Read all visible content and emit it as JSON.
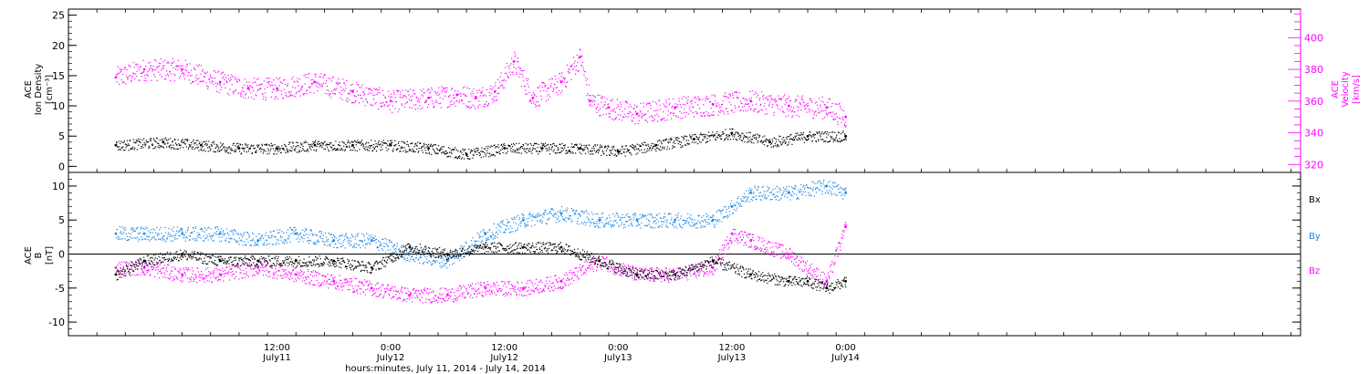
{
  "xaxis": {
    "title": "hours:minutes, July 11, 2014 - July 14, 2014",
    "range_hours": [
      -22,
      108
    ],
    "ticks": [
      {
        "h": 0,
        "time": "12:00",
        "date": "July11"
      },
      {
        "h": 12,
        "time": "0:00",
        "date": "July12"
      },
      {
        "h": 24,
        "time": "12:00",
        "date": "July12"
      },
      {
        "h": 36,
        "time": "0:00",
        "date": "July13"
      },
      {
        "h": 48,
        "time": "12:00",
        "date": "July13"
      },
      {
        "h": 60,
        "time": "0:00",
        "date": "July14"
      }
    ]
  },
  "top_panel": {
    "left_label": [
      "ACE",
      "Ion Density",
      "[cm⁻³]"
    ],
    "right_label": [
      "ACE",
      "Velocity",
      "[km/s]"
    ],
    "left_ticks": [
      "0",
      "5",
      "10",
      "15",
      "20",
      "25"
    ],
    "right_ticks": [
      "320",
      "340",
      "360",
      "380",
      "400"
    ],
    "colors": {
      "density": "#000000",
      "velocity": "#ff00ff"
    }
  },
  "bottom_panel": {
    "label": [
      "ACE",
      "B",
      "[nT]"
    ],
    "ticks": [
      "-10",
      "-5",
      "0",
      "5",
      "10"
    ],
    "legend": [
      {
        "text": "Bx",
        "color": "#000000"
      },
      {
        "text": "By",
        "color": "#1e88e5"
      },
      {
        "text": "Bz",
        "color": "#ff00ff"
      }
    ]
  },
  "chart_data": [
    {
      "type": "scatter",
      "title": "",
      "xlabel": "hours:minutes, July 11, 2014 - July 14, 2014",
      "ylabel": "ACE Ion Density [cm⁻³]",
      "y2label": "ACE Velocity [km/s]",
      "ylim": [
        -1,
        26
      ],
      "y2lim": [
        315,
        418
      ],
      "x_unit": "hours from July 11 12:00",
      "series": [
        {
          "name": "",
          "axis": "left",
          "color": "#000000",
          "x": [
            -17,
            -12,
            -8,
            -4,
            0,
            4,
            8,
            12,
            16,
            20,
            24,
            28,
            32,
            36,
            40,
            44,
            48,
            52,
            56,
            60
          ],
          "y": [
            3.5,
            4,
            3.5,
            3,
            3,
            3.5,
            3.5,
            3.5,
            3,
            2,
            3,
            3,
            3,
            2.5,
            3.5,
            4.5,
            5.5,
            4,
            5,
            5
          ]
        },
        {
          "name": "",
          "axis": "right",
          "color": "#ff00ff",
          "x": [
            -17,
            -14,
            -10,
            -6,
            -3,
            0,
            4,
            8,
            12,
            16,
            19,
            21,
            23,
            25,
            27,
            30,
            32,
            33,
            35,
            38,
            42,
            46,
            50,
            54,
            58,
            60
          ],
          "y": [
            375,
            380,
            380,
            372,
            368,
            368,
            372,
            366,
            360,
            362,
            364,
            362,
            366,
            385,
            362,
            372,
            388,
            360,
            356,
            352,
            356,
            358,
            360,
            357,
            356,
            350
          ]
        }
      ]
    },
    {
      "type": "scatter",
      "title": "",
      "xlabel": "hours:minutes, July 11, 2014 - July 14, 2014",
      "ylabel": "ACE B [nT]",
      "ylim": [
        -12,
        12
      ],
      "x_unit": "hours from July 11 12:00",
      "series": [
        {
          "name": "Bx",
          "color": "#000000",
          "x": [
            -17,
            -14,
            -10,
            -6,
            -2,
            2,
            6,
            10,
            14,
            18,
            22,
            26,
            30,
            34,
            38,
            42,
            46,
            50,
            54,
            56,
            58,
            60
          ],
          "y": [
            -3,
            -1,
            0,
            -1,
            -1,
            -1,
            -1,
            -2,
            1,
            0,
            1,
            1,
            1,
            -1,
            -3,
            -3,
            -1,
            -3,
            -4,
            -4,
            -5,
            -4
          ]
        },
        {
          "name": "By",
          "color": "#1e88e5",
          "x": [
            -17,
            -14,
            -10,
            -6,
            -2,
            2,
            6,
            10,
            14,
            18,
            22,
            26,
            30,
            34,
            38,
            42,
            46,
            48,
            50,
            54,
            58,
            60
          ],
          "y": [
            3,
            3,
            3,
            3,
            2,
            3,
            2,
            2,
            0,
            -1,
            3,
            5,
            6,
            5,
            5,
            5,
            5,
            7,
            9,
            9,
            10,
            9
          ]
        },
        {
          "name": "Bz",
          "color": "#ff00ff",
          "x": [
            -17,
            -14,
            -10,
            -6,
            -2,
            2,
            6,
            10,
            14,
            18,
            22,
            26,
            30,
            34,
            38,
            42,
            46,
            48,
            50,
            54,
            58,
            60
          ],
          "y": [
            -2,
            -2,
            -3,
            -3,
            -2,
            -3,
            -4,
            -5,
            -6,
            -6,
            -5,
            -5,
            -4,
            -1,
            -3,
            -3,
            -2,
            3,
            2,
            0,
            -4,
            4
          ]
        }
      ]
    }
  ]
}
